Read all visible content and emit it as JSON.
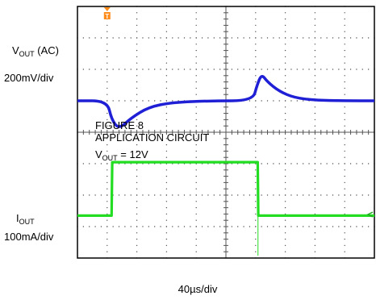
{
  "chart_data": {
    "type": "line",
    "title": "",
    "grid": true,
    "divisions": {
      "x": 10,
      "y": 8
    },
    "time_scale": "40µs/div",
    "annotations": [
      "FIGURE 8",
      "APPLICATION CIRCUIT",
      "= 12V"
    ],
    "annotation_vout": {
      "main": "V",
      "sub": "OUT",
      "value": "=  12V"
    },
    "trigger_marker": "T",
    "series": [
      {
        "name_main": "V",
        "name_sub": "OUT",
        "name_suffix": " (AC)",
        "scale": "200mV/div",
        "color": "#1f1fd6",
        "x_div": [
          0,
          1.0,
          1.15,
          1.4,
          1.8,
          2.4,
          3.2,
          4.5,
          5.9,
          6.05,
          6.2,
          6.4,
          6.8,
          7.3,
          8.0,
          9.0,
          10
        ],
        "y_div": [
          5.0,
          5.0,
          4.4,
          4.1,
          4.45,
          4.8,
          4.95,
          5.0,
          5.0,
          5.5,
          5.85,
          5.6,
          5.3,
          5.1,
          5.02,
          5.0,
          5.0
        ]
      },
      {
        "name_main": "I",
        "name_sub": "OUT",
        "scale": "100mA/div",
        "color": "#22dd22",
        "x_div": [
          0,
          1.15,
          1.17,
          1.35,
          6.07,
          6.09,
          10
        ],
        "y_div": [
          1.35,
          1.35,
          3.05,
          3.05,
          3.05,
          1.35,
          1.35
        ]
      }
    ]
  },
  "labels": {
    "vout_main": "V",
    "vout_sub": "OUT",
    "vout_suffix": " (AC)",
    "vout_scale": "200mV/div",
    "iout_main": "I",
    "iout_sub": "OUT",
    "iout_scale": "100mA/div",
    "time_scale": "40µs/div",
    "fig_line1": "FIGURE 8",
    "fig_line2": "APPLICATION CIRCUIT",
    "fig_vout_main": "V",
    "fig_vout_sub": "OUT",
    "fig_vout_value": "=  12V",
    "trigger": "T"
  },
  "colors": {
    "vout": "#1f1fd6",
    "iout": "#22dd22",
    "trigger": "#ff8c1a",
    "grid": "#555555"
  }
}
